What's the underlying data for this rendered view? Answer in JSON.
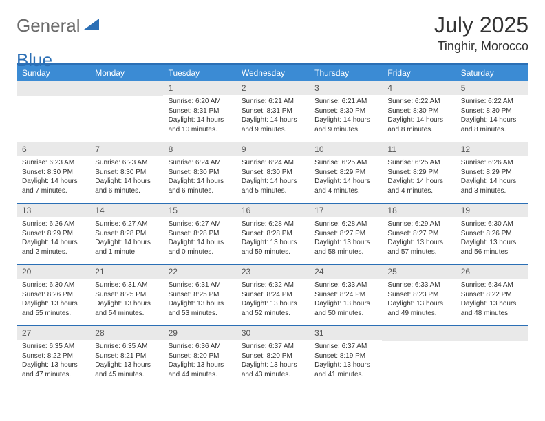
{
  "brand": {
    "text_general": "General",
    "text_blue": "Blue",
    "triangle_color": "#2b6fb5"
  },
  "title": {
    "month_year": "July 2025",
    "location": "Tinghir, Morocco"
  },
  "colors": {
    "header_bg": "#3b8bd4",
    "border": "#2b6fb5",
    "daynum_bg": "#e9e9e9"
  },
  "day_names": [
    "Sunday",
    "Monday",
    "Tuesday",
    "Wednesday",
    "Thursday",
    "Friday",
    "Saturday"
  ],
  "weeks": [
    [
      {
        "empty": true
      },
      {
        "empty": true
      },
      {
        "day": "1",
        "sunrise": "Sunrise: 6:20 AM",
        "sunset": "Sunset: 8:31 PM",
        "daylight": "Daylight: 14 hours and 10 minutes."
      },
      {
        "day": "2",
        "sunrise": "Sunrise: 6:21 AM",
        "sunset": "Sunset: 8:31 PM",
        "daylight": "Daylight: 14 hours and 9 minutes."
      },
      {
        "day": "3",
        "sunrise": "Sunrise: 6:21 AM",
        "sunset": "Sunset: 8:30 PM",
        "daylight": "Daylight: 14 hours and 9 minutes."
      },
      {
        "day": "4",
        "sunrise": "Sunrise: 6:22 AM",
        "sunset": "Sunset: 8:30 PM",
        "daylight": "Daylight: 14 hours and 8 minutes."
      },
      {
        "day": "5",
        "sunrise": "Sunrise: 6:22 AM",
        "sunset": "Sunset: 8:30 PM",
        "daylight": "Daylight: 14 hours and 8 minutes."
      }
    ],
    [
      {
        "day": "6",
        "sunrise": "Sunrise: 6:23 AM",
        "sunset": "Sunset: 8:30 PM",
        "daylight": "Daylight: 14 hours and 7 minutes."
      },
      {
        "day": "7",
        "sunrise": "Sunrise: 6:23 AM",
        "sunset": "Sunset: 8:30 PM",
        "daylight": "Daylight: 14 hours and 6 minutes."
      },
      {
        "day": "8",
        "sunrise": "Sunrise: 6:24 AM",
        "sunset": "Sunset: 8:30 PM",
        "daylight": "Daylight: 14 hours and 6 minutes."
      },
      {
        "day": "9",
        "sunrise": "Sunrise: 6:24 AM",
        "sunset": "Sunset: 8:30 PM",
        "daylight": "Daylight: 14 hours and 5 minutes."
      },
      {
        "day": "10",
        "sunrise": "Sunrise: 6:25 AM",
        "sunset": "Sunset: 8:29 PM",
        "daylight": "Daylight: 14 hours and 4 minutes."
      },
      {
        "day": "11",
        "sunrise": "Sunrise: 6:25 AM",
        "sunset": "Sunset: 8:29 PM",
        "daylight": "Daylight: 14 hours and 4 minutes."
      },
      {
        "day": "12",
        "sunrise": "Sunrise: 6:26 AM",
        "sunset": "Sunset: 8:29 PM",
        "daylight": "Daylight: 14 hours and 3 minutes."
      }
    ],
    [
      {
        "day": "13",
        "sunrise": "Sunrise: 6:26 AM",
        "sunset": "Sunset: 8:29 PM",
        "daylight": "Daylight: 14 hours and 2 minutes."
      },
      {
        "day": "14",
        "sunrise": "Sunrise: 6:27 AM",
        "sunset": "Sunset: 8:28 PM",
        "daylight": "Daylight: 14 hours and 1 minute."
      },
      {
        "day": "15",
        "sunrise": "Sunrise: 6:27 AM",
        "sunset": "Sunset: 8:28 PM",
        "daylight": "Daylight: 14 hours and 0 minutes."
      },
      {
        "day": "16",
        "sunrise": "Sunrise: 6:28 AM",
        "sunset": "Sunset: 8:28 PM",
        "daylight": "Daylight: 13 hours and 59 minutes."
      },
      {
        "day": "17",
        "sunrise": "Sunrise: 6:28 AM",
        "sunset": "Sunset: 8:27 PM",
        "daylight": "Daylight: 13 hours and 58 minutes."
      },
      {
        "day": "18",
        "sunrise": "Sunrise: 6:29 AM",
        "sunset": "Sunset: 8:27 PM",
        "daylight": "Daylight: 13 hours and 57 minutes."
      },
      {
        "day": "19",
        "sunrise": "Sunrise: 6:30 AM",
        "sunset": "Sunset: 8:26 PM",
        "daylight": "Daylight: 13 hours and 56 minutes."
      }
    ],
    [
      {
        "day": "20",
        "sunrise": "Sunrise: 6:30 AM",
        "sunset": "Sunset: 8:26 PM",
        "daylight": "Daylight: 13 hours and 55 minutes."
      },
      {
        "day": "21",
        "sunrise": "Sunrise: 6:31 AM",
        "sunset": "Sunset: 8:25 PM",
        "daylight": "Daylight: 13 hours and 54 minutes."
      },
      {
        "day": "22",
        "sunrise": "Sunrise: 6:31 AM",
        "sunset": "Sunset: 8:25 PM",
        "daylight": "Daylight: 13 hours and 53 minutes."
      },
      {
        "day": "23",
        "sunrise": "Sunrise: 6:32 AM",
        "sunset": "Sunset: 8:24 PM",
        "daylight": "Daylight: 13 hours and 52 minutes."
      },
      {
        "day": "24",
        "sunrise": "Sunrise: 6:33 AM",
        "sunset": "Sunset: 8:24 PM",
        "daylight": "Daylight: 13 hours and 50 minutes."
      },
      {
        "day": "25",
        "sunrise": "Sunrise: 6:33 AM",
        "sunset": "Sunset: 8:23 PM",
        "daylight": "Daylight: 13 hours and 49 minutes."
      },
      {
        "day": "26",
        "sunrise": "Sunrise: 6:34 AM",
        "sunset": "Sunset: 8:22 PM",
        "daylight": "Daylight: 13 hours and 48 minutes."
      }
    ],
    [
      {
        "day": "27",
        "sunrise": "Sunrise: 6:35 AM",
        "sunset": "Sunset: 8:22 PM",
        "daylight": "Daylight: 13 hours and 47 minutes."
      },
      {
        "day": "28",
        "sunrise": "Sunrise: 6:35 AM",
        "sunset": "Sunset: 8:21 PM",
        "daylight": "Daylight: 13 hours and 45 minutes."
      },
      {
        "day": "29",
        "sunrise": "Sunrise: 6:36 AM",
        "sunset": "Sunset: 8:20 PM",
        "daylight": "Daylight: 13 hours and 44 minutes."
      },
      {
        "day": "30",
        "sunrise": "Sunrise: 6:37 AM",
        "sunset": "Sunset: 8:20 PM",
        "daylight": "Daylight: 13 hours and 43 minutes."
      },
      {
        "day": "31",
        "sunrise": "Sunrise: 6:37 AM",
        "sunset": "Sunset: 8:19 PM",
        "daylight": "Daylight: 13 hours and 41 minutes."
      },
      {
        "empty": true
      },
      {
        "empty": true
      }
    ]
  ]
}
